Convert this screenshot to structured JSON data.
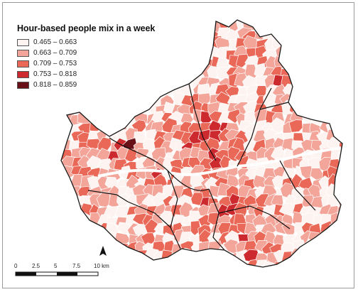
{
  "legend": {
    "title": "Hour-based people mix in a week",
    "items": [
      {
        "label": "0.465 – 0.663",
        "color": "#fdf4f1"
      },
      {
        "label": "0.663 – 0.709",
        "color": "#f3a59a"
      },
      {
        "label": "0.709 – 0.753",
        "color": "#ea6857"
      },
      {
        "label": "0.753 – 0.818",
        "color": "#cd2a2f"
      },
      {
        "label": "0.818 – 0.859",
        "color": "#6a1018"
      }
    ]
  },
  "scale_bar": {
    "labels": [
      "0",
      "2.5",
      "5",
      "7.5",
      "10 km"
    ]
  },
  "north_arrow": {
    "icon": "north-arrow-icon"
  }
}
